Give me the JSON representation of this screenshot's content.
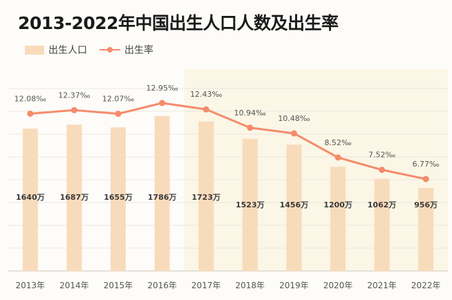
{
  "title": "2013-2022年中国出生人口人数及出生率",
  "legend": {
    "bar_label": "出生人口",
    "line_label": "出生率"
  },
  "colors": {
    "bar": "#f8dbbb",
    "line": "#f58b6b",
    "highlight": "#fbf6e6",
    "grid": "#ebe7df",
    "axis": "#cfc8bc"
  },
  "chart_data": {
    "type": "bar",
    "categories": [
      "2013年",
      "2014年",
      "2015年",
      "2016年",
      "2017年",
      "2018年",
      "2019年",
      "2020年",
      "2021年",
      "2022年"
    ],
    "series": [
      {
        "name": "出生人口",
        "type": "bar",
        "values": [
          1640,
          1687,
          1655,
          1786,
          1723,
          1523,
          1456,
          1200,
          1062,
          956
        ],
        "labels": [
          "1640万",
          "1687万",
          "1655万",
          "1786万",
          "1723万",
          "1523万",
          "1456万",
          "1200万",
          "1062万",
          "956万"
        ]
      },
      {
        "name": "出生率",
        "type": "line",
        "values": [
          12.08,
          12.37,
          12.07,
          12.95,
          12.43,
          10.94,
          10.48,
          8.52,
          7.52,
          6.77
        ],
        "labels": [
          "12.08‰",
          "12.37‰",
          "12.07‰",
          "12.95‰",
          "12.43‰",
          "10.94‰",
          "10.48‰",
          "8.52‰",
          "7.52‰",
          "6.77‰"
        ]
      }
    ],
    "highlight_range": [
      "2017年",
      "2022年"
    ],
    "grid": true,
    "legend_position": "top-left"
  }
}
